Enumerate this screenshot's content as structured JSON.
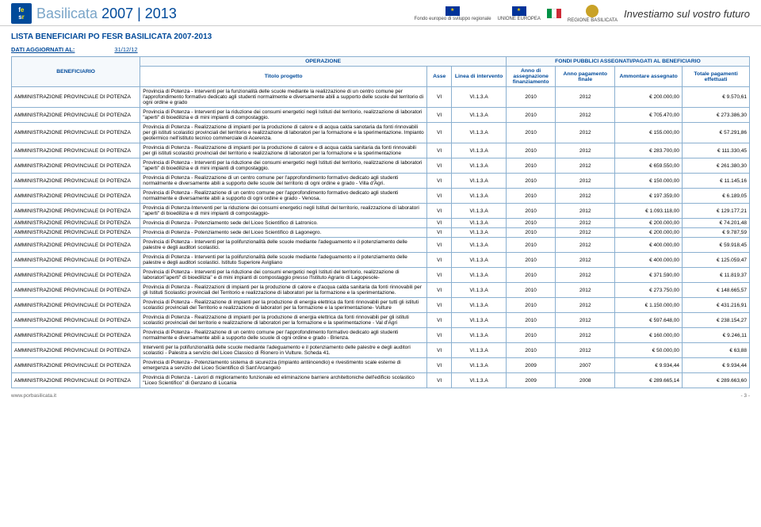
{
  "header": {
    "fesr_initials": "f e s r",
    "brand_line1": "Basilicata",
    "brand_years": "2007 | 2013",
    "right_labels": {
      "eu_fund": "Fondo europeo di sviluppo regionale",
      "ue": "UNIONE EUROPEA",
      "region": "REGIONE BASILICATA"
    },
    "slogan": "Investiamo sul vostro futuro"
  },
  "list_title": "LISTA BENEFICIARI PO FESR BASILICATA 2007-2013",
  "date_updated_label": "DATI AGGIORNATI AL:",
  "date_updated_value": "31/12/12",
  "table": {
    "group_headers": {
      "operazione": "OPERAZIONE",
      "fondi": "FONDI PUBBLICI ASSEGNATI/PAGATI AL BENEFICIARIO"
    },
    "headers": {
      "beneficiario": "BENEFICIARIO",
      "titolo": "Titolo progetto",
      "asse": "Asse",
      "linea": "Linea di intervento",
      "anno_assegn": "Anno di assegnazione finanziamento",
      "anno_pag": "Anno pagamento finale",
      "ammontare": "Ammontare assegnato",
      "totale": "Totale pagamenti effettuati"
    },
    "rows": [
      {
        "ben": "AMMINISTRAZIONE PROVINCIALE DI POTENZA",
        "prog": "Provincia di Potenza - Interventi per la funzionalità delle scuole mediante la realizzazione di un centro comune per l'approfondimento formativo dedicato agli studenti normalmente e diversamente abili a supporto delle scuole del territorio di ogni ordine e grado",
        "asse": "VI",
        "linea": "VI.1.3.A",
        "aa": "2010",
        "ap": "2012",
        "amm": "€ 200.000,00",
        "tot": "€ 9.570,61"
      },
      {
        "ben": "AMMINISTRAZIONE PROVINCIALE DI POTENZA",
        "prog": "Provincia di Potenza - Interventi per la riduzione dei consumi energetici negli Istituti del territorio, realizzazione di laboratori \"aperti\" di bioedilizia e di mini impianti di compostaggio.",
        "asse": "VI",
        "linea": "VI.1.3.A",
        "aa": "2010",
        "ap": "2012",
        "amm": "€ 705.470,00",
        "tot": "€ 273.386,30"
      },
      {
        "ben": "AMMINISTRAZIONE PROVINCIALE DI POTENZA",
        "prog": "Provincia di Potenza - Realizzazione di impianti per la produzione di calore e di acqua calda sanotaria da fonti rinnovabili per gli istituti scolastici provinciali del territorio e realizzazione di laboratori per la formazione e la sperimentazione. Impianto geotermico nell'istituto tecnico commerciale di Acerenza.",
        "asse": "VI",
        "linea": "VI.1.3.A",
        "aa": "2010",
        "ap": "2012",
        "amm": "€ 155.000,00",
        "tot": "€ 57.291,86"
      },
      {
        "ben": "AMMINISTRAZIONE PROVINCIALE DI POTENZA",
        "prog": "Provincia di Potenza - Realizzazione di impianti per la produzione di calore e di acqua calda sanitaria da fonti rinnovabili per gli istituti scolastici provinciali del territorio e realizzazione di laboratori per la formazione e la sperimentazione",
        "asse": "VI",
        "linea": "VI.1.3.A",
        "aa": "2010",
        "ap": "2012",
        "amm": "€ 283.700,00",
        "tot": "€ 111.330,45"
      },
      {
        "ben": "AMMINISTRAZIONE PROVINCIALE DI POTENZA",
        "prog": "Provincia di Potenza - Interventi per la riduzione dei consumi energetici negli Istituti del territorio, realizzazione di laboratori \"aperti\" di bioedilizia e di mini impianti di compostaggio.",
        "asse": "VI",
        "linea": "VI.1.3.A",
        "aa": "2010",
        "ap": "2012",
        "amm": "€ 659.550,00",
        "tot": "€ 261.380,30"
      },
      {
        "ben": "AMMINISTRAZIONE PROVINCIALE DI POTENZA",
        "prog": "Provincia di Potenza - Realizzazione di un centro comune per l'approfondimento formativo dedicato agli studenti normalmente e diversamente abili a supporto delle scuole del territorio di ogni ordine e grado - Villa d'Agri.",
        "asse": "VI",
        "linea": "VI.1.3.A",
        "aa": "2010",
        "ap": "2012",
        "amm": "€ 150.000,00",
        "tot": "€ 11.145,16"
      },
      {
        "ben": "AMMINISTRAZIONE PROVINCIALE DI POTENZA",
        "prog": "Provincia di Potenza - Realizzazione di un centro comune per l'approfondimento formativo dedicato agli studenti normalmente e diversamente abili a supporto di ogni ordine e grado - Venosa.",
        "asse": "VI",
        "linea": "VI.1.3.A",
        "aa": "2010",
        "ap": "2012",
        "amm": "€ 197.359,00",
        "tot": "€ 6.189,05"
      },
      {
        "ben": "AMMINISTRAZIONE PROVINCIALE DI POTENZA",
        "prog": "Provincia di Potenza-Interventi per la riduzione dei consumi energetici negli Istituti del territorio, realizzazione di laboratori \"aperti\" di bioedilizia e di mini impianti di compostaggio-",
        "asse": "VI",
        "linea": "VI.1.3.A",
        "aa": "2010",
        "ap": "2012",
        "amm": "€ 1.093.118,00",
        "tot": "€ 129.177,21"
      },
      {
        "ben": "AMMINISTRAZIONE PROVINCIALE DI POTENZA",
        "prog": "Provincia di Potenza - Potenziamento sede del Liceo Scientifico di Latronico.",
        "asse": "VI",
        "linea": "VI.1.3.A",
        "aa": "2010",
        "ap": "2012",
        "amm": "€ 200.000,00",
        "tot": "€ 74.201,48"
      },
      {
        "ben": "AMMINISTRAZIONE PROVINCIALE DI POTENZA",
        "prog": "Provincia di Potenza - Potenziamento sede del Liceo Scientifico di Lagonegro.",
        "asse": "VI",
        "linea": "VI.1.3.A",
        "aa": "2010",
        "ap": "2012",
        "amm": "€ 200.000,00",
        "tot": "€ 9.787,59"
      },
      {
        "ben": "AMMINISTRAZIONE PROVINCIALE DI POTENZA",
        "prog": "Provincia di Potenza - Interventi per la polifunzionalità delle scuole mediante l'adeguamento e il potenziamento delle palestre e degli auditori scolastici.",
        "asse": "VI",
        "linea": "VI.1.3.A",
        "aa": "2010",
        "ap": "2012",
        "amm": "€ 400.000,00",
        "tot": "€ 59.918,45"
      },
      {
        "ben": "AMMINISTRAZIONE PROVINCIALE DI POTENZA",
        "prog": "Provincia di Potenza - Interventi per la polifunzionalità delle scuole mediante l'adeguamento e il potenziamento delle palestre e degli auditori scolastici. Istituto Superiore Avigliano",
        "asse": "VI",
        "linea": "VI.1.3.A",
        "aa": "2010",
        "ap": "2012",
        "amm": "€ 400.000,00",
        "tot": "€ 125.059,47"
      },
      {
        "ben": "AMMINISTRAZIONE PROVINCIALE DI POTENZA",
        "prog": "Provincia di Potenza - Interventi per la riduzione dei consumi energetici negli Istituti del territorio, realizzazione di laboratori\"aperti\" di bioedilizia\" e di mini impianti di compostaggio presso l'Istituto Agrario di Lagopesole-",
        "asse": "VI",
        "linea": "VI.1.3.A",
        "aa": "2010",
        "ap": "2012",
        "amm": "€ 371.590,00",
        "tot": "€ 11.819,37"
      },
      {
        "ben": "AMMINISTRAZIONE PROVINCIALE DI POTENZA",
        "prog": "Provincia di Potenza - Realizzazioni di impianti per la produzione di calore e d'acqua calda sanitaria da fonti rinnovabili per gli Istituti Scolastici provinciali del Territorio e realizzazione di laboratori per la formazione e la sperimentazione.",
        "asse": "VI",
        "linea": "VI.1.3.A",
        "aa": "2010",
        "ap": "2012",
        "amm": "€ 273.750,00",
        "tot": "€ 148.665,57"
      },
      {
        "ben": "AMMINISTRAZIONE PROVINCIALE DI POTENZA",
        "prog": "Provincia di Potenza - Realizzazione di impianti per la produzione di energia elettrica da fonti rinnovabili per tutti gli istituti scolastici provinciali del Territorio e realizzazione di laboratori per la formazione e la sperimentazione- Vulture",
        "asse": "VI",
        "linea": "VI.1.3.A",
        "aa": "2010",
        "ap": "2012",
        "amm": "€ 1.150.000,00",
        "tot": "€ 431.216,91"
      },
      {
        "ben": "AMMINISTRAZIONE PROVINCIALE DI POTENZA",
        "prog": "Provincia di Potenza - Realizzazione di impianti per la produzione di energia elettrica da fonti rinnovabili per gli istituti scolastici provinciali del territorio e realizzazione di laboratori per la formazione e la sperimentazione - Val d'Agri",
        "asse": "VI",
        "linea": "VI.1.3.A",
        "aa": "2010",
        "ap": "2012",
        "amm": "€ 597.648,00",
        "tot": "€ 238.154,27"
      },
      {
        "ben": "AMMINISTRAZIONE PROVINCIALE DI POTENZA",
        "prog": "Provincia di Potenza - Realizzazione di un centro comune per l'approfondimento formativo dedicato agli studenti normalmente e diversamente abili a supporto delle scuole di ogni ordine e grado - Brienza.",
        "asse": "VI",
        "linea": "VI.1.3.A",
        "aa": "2010",
        "ap": "2012",
        "amm": "€ 160.000,00",
        "tot": "€ 9.246,11"
      },
      {
        "ben": "AMMINISTRAZIONE PROVINCIALE DI POTENZA",
        "prog": "Interventi per la polifunzionalità delle scuole mediante l'adeguamento e il potenziamento delle palestre e degli auditori scolastici - Palestra a servizio del Liceo Classico di Rionero in Vulture. Scheda 41.",
        "asse": "VI",
        "linea": "VI.1.3.A",
        "aa": "2010",
        "ap": "2012",
        "amm": "€ 50.000,00",
        "tot": "€ 63,88"
      },
      {
        "ben": "AMMINISTRAZIONE PROVINCIALE DI POTENZA",
        "prog": "Provincia di Potenza - Potenziamento sistema di sicurezza (impianto antiincendio) e rivestimento scale esterne di emergenza a servizio del Liceo Scientifico di Sant'Arcangelo",
        "asse": "VI",
        "linea": "VI.1.3.A",
        "aa": "2009",
        "ap": "2007",
        "amm": "€ 9.934,44",
        "tot": "€ 9.934,44"
      },
      {
        "ben": "AMMINISTRAZIONE PROVINCIALE DI POTENZA",
        "prog": "Provincia di Potenza - Lavori di miglioramento funzionale ed eliminazione barriere architettoniche dell'edificio scolastico \"Liceo Scientifico\" di Genzano di Lucania",
        "asse": "VI",
        "linea": "VI.1.3.A",
        "aa": "2009",
        "ap": "2008",
        "amm": "€ 289.665,14",
        "tot": "€ 289.663,60"
      }
    ]
  },
  "footer": {
    "url": "www.porbasilicata.it",
    "page": "- 3 -"
  }
}
